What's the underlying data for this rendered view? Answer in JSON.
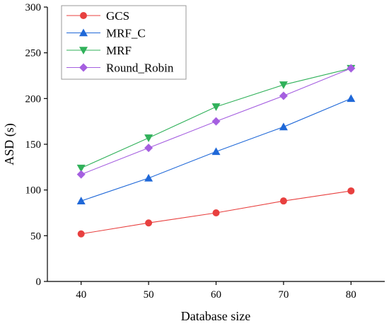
{
  "chart_data": {
    "type": "line",
    "title": "",
    "xlabel": "Database size",
    "ylabel": "ASD (s)",
    "x": [
      40,
      50,
      60,
      70,
      80
    ],
    "xticks": [
      40,
      50,
      60,
      70,
      80
    ],
    "xlim": [
      35,
      85
    ],
    "ylim": [
      0,
      300
    ],
    "yticks": [
      0,
      50,
      100,
      150,
      200,
      250,
      300
    ],
    "grid": false,
    "legend_position": "top-left",
    "series": [
      {
        "name": "GCS",
        "marker": "circle",
        "color": "#e8403f",
        "values": [
          52,
          64,
          75,
          88,
          99
        ]
      },
      {
        "name": "MRF_C",
        "marker": "triangle-up",
        "color": "#1f68d8",
        "values": [
          88,
          113,
          142,
          169,
          200
        ]
      },
      {
        "name": "MRF",
        "marker": "triangle-down",
        "color": "#30b15a",
        "values": [
          124,
          157,
          191,
          215,
          233
        ]
      },
      {
        "name": "Round_Robin",
        "marker": "diamond",
        "color": "#a55fe0",
        "values": [
          117,
          146,
          175,
          203,
          233
        ]
      }
    ]
  }
}
